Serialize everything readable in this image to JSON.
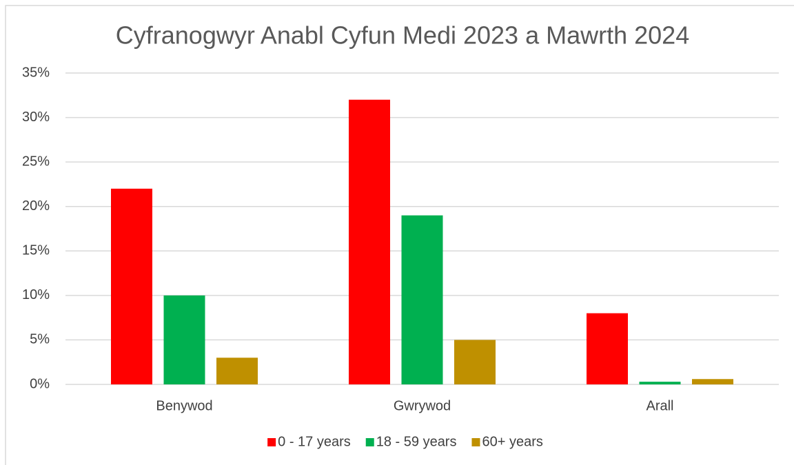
{
  "chart_data": {
    "type": "bar",
    "title": "Cyfranogwyr Anabl Cyfun Medi 2023 a Mawrth 2024",
    "categories": [
      "Benywod",
      "Gwrywod",
      "Arall"
    ],
    "series": [
      {
        "name": "0 - 17 years",
        "color": "#ff0000",
        "values": [
          22,
          32,
          8
        ]
      },
      {
        "name": "18 - 59 years",
        "color": "#00b050",
        "values": [
          10,
          19,
          0.3
        ]
      },
      {
        "name": "60+ years",
        "color": "#bf9000",
        "values": [
          3,
          5,
          0.6
        ]
      }
    ],
    "ylim": [
      0,
      35
    ],
    "yticks": [
      {
        "value": 0,
        "label": "0%"
      },
      {
        "value": 5,
        "label": "5%"
      },
      {
        "value": 10,
        "label": "10%"
      },
      {
        "value": 15,
        "label": "15%"
      },
      {
        "value": 20,
        "label": "20%"
      },
      {
        "value": 25,
        "label": "25%"
      },
      {
        "value": 30,
        "label": "30%"
      },
      {
        "value": 35,
        "label": "35%"
      }
    ],
    "grid": true,
    "legend": "bottom"
  }
}
